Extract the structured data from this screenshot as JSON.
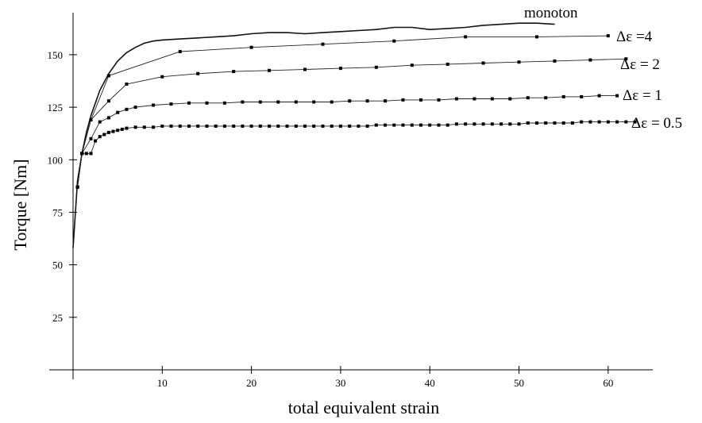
{
  "chart_data": {
    "type": "line",
    "xlabel": "total equivalent strain",
    "ylabel": "Torque [Nm]",
    "xlim": [
      0,
      65
    ],
    "ylim": [
      0,
      170
    ],
    "xticks": [
      10,
      20,
      30,
      40,
      50,
      60
    ],
    "yticks": [
      25,
      50,
      75,
      100,
      125,
      150
    ],
    "grid": false,
    "series": [
      {
        "name": "monoton",
        "markers": false,
        "x": [
          0,
          0.5,
          1,
          1.5,
          2,
          3,
          4,
          5,
          6,
          7,
          8,
          9,
          10,
          12,
          14,
          16,
          18,
          20,
          22,
          24,
          26,
          28,
          30,
          32,
          34,
          36,
          38,
          40,
          42,
          44,
          46,
          48,
          50,
          52,
          54
        ],
        "y": [
          58,
          90,
          103,
          113,
          121,
          133,
          141,
          147,
          151,
          153.5,
          155.5,
          156.5,
          157,
          157.5,
          158,
          158.5,
          159,
          160,
          160.5,
          160.5,
          160,
          160.5,
          161,
          161.5,
          162,
          163,
          163,
          162,
          162.5,
          163,
          164,
          164.5,
          165,
          165,
          164.5
        ]
      },
      {
        "name": "Δε =4",
        "x": [
          0.5,
          1,
          2,
          4,
          12,
          20,
          28,
          36,
          44,
          52,
          60
        ],
        "y": [
          87,
          103,
          119,
          140,
          151.5,
          153.5,
          155,
          156.5,
          158.5,
          158.5,
          159
        ]
      },
      {
        "name": "Δε = 2",
        "x": [
          0.5,
          1,
          2,
          4,
          6,
          10,
          14,
          18,
          22,
          26,
          30,
          34,
          38,
          42,
          46,
          50,
          54,
          58,
          62
        ],
        "y": [
          87,
          103,
          119,
          128,
          136,
          139.5,
          141,
          142,
          142.5,
          143,
          143.5,
          144,
          145,
          145.5,
          146,
          146.5,
          147,
          147.5,
          148
        ]
      },
      {
        "name": "Δε = 1",
        "x": [
          0.5,
          1,
          2,
          3,
          4,
          5,
          6,
          7,
          9,
          11,
          13,
          15,
          17,
          19,
          21,
          23,
          25,
          27,
          29,
          31,
          33,
          35,
          37,
          39,
          41,
          43,
          45,
          47,
          49,
          51,
          53,
          55,
          57,
          59,
          61
        ],
        "y": [
          87,
          103,
          110,
          118,
          120,
          122.5,
          124,
          125,
          126,
          126.5,
          127,
          127,
          127,
          127.5,
          127.5,
          127.5,
          127.5,
          127.5,
          127.5,
          128,
          128,
          128,
          128.5,
          128.5,
          128.5,
          129,
          129,
          129,
          129,
          129.5,
          129.5,
          130,
          130,
          130.5,
          130.5
        ]
      },
      {
        "name": "Δε = 0.5",
        "x": [
          0.5,
          1,
          1.5,
          2,
          2.5,
          3,
          3.5,
          4,
          4.5,
          5,
          5.5,
          6,
          7,
          8,
          9,
          10,
          11,
          12,
          13,
          14,
          15,
          16,
          17,
          18,
          19,
          20,
          21,
          22,
          23,
          24,
          25,
          26,
          27,
          28,
          29,
          30,
          31,
          32,
          33,
          34,
          35,
          36,
          37,
          38,
          39,
          40,
          41,
          42,
          43,
          44,
          45,
          46,
          47,
          48,
          49,
          50,
          51,
          52,
          53,
          54,
          55,
          56,
          57,
          58,
          59,
          60,
          61,
          62,
          63
        ],
        "y": [
          87,
          103,
          103,
          103,
          109,
          111,
          112,
          113,
          113.5,
          114,
          114.5,
          115,
          115.5,
          115.5,
          115.5,
          116,
          116,
          116,
          116,
          116,
          116,
          116,
          116,
          116,
          116,
          116,
          116,
          116,
          116,
          116,
          116,
          116,
          116,
          116,
          116,
          116,
          116,
          116,
          116,
          116.5,
          116.5,
          116.5,
          116.5,
          116.5,
          116.5,
          116.5,
          116.5,
          116.5,
          117,
          117,
          117,
          117,
          117,
          117,
          117,
          117,
          117.5,
          117.5,
          117.5,
          117.5,
          117.5,
          117.5,
          118,
          118,
          118,
          118,
          118,
          118,
          118
        ]
      }
    ]
  }
}
